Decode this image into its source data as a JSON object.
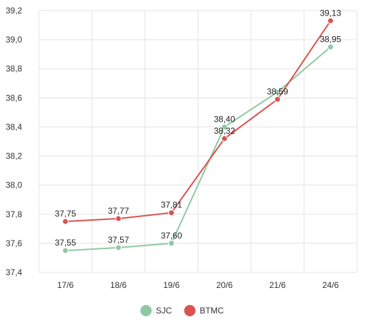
{
  "chart_data": {
    "type": "line",
    "categories": [
      "17/6",
      "18/6",
      "19/6",
      "20/6",
      "21/6",
      "24/6"
    ],
    "series": [
      {
        "name": "SJC",
        "color": "#8fc9a3",
        "values": [
          37.55,
          37.57,
          37.6,
          38.4,
          38.64,
          38.95
        ],
        "labels": [
          "37,55",
          "37,57",
          "37,60",
          "38,40",
          "",
          "38,95"
        ]
      },
      {
        "name": "BTMC",
        "color": "#d9534f",
        "values": [
          37.75,
          37.77,
          37.81,
          38.32,
          38.59,
          39.13
        ],
        "labels": [
          "37,75",
          "37,77",
          "37,81",
          "38,32",
          "38,59",
          "39,13"
        ]
      }
    ],
    "ylim": [
      37.4,
      39.2
    ],
    "yticks": [
      37.4,
      37.6,
      37.8,
      38.0,
      38.2,
      38.4,
      38.6,
      38.8,
      39.0,
      39.2
    ],
    "ytick_labels": [
      "37,4",
      "37,6",
      "37,8",
      "38,0",
      "38,2",
      "38,4",
      "38,6",
      "38,8",
      "39,0",
      "39,2"
    ],
    "grid": true,
    "legend_position": "bottom-center",
    "title": "",
    "xlabel": "",
    "ylabel": ""
  }
}
